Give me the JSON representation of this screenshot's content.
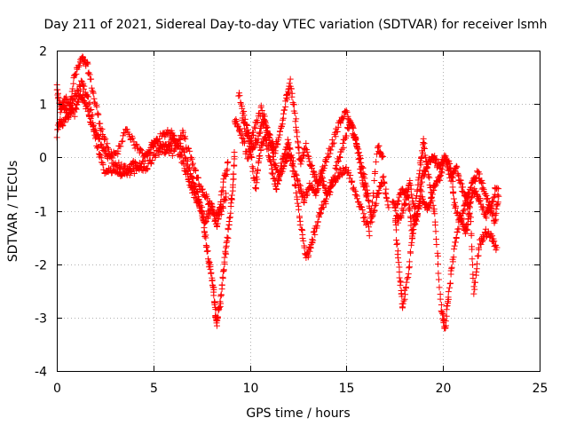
{
  "chart_data": {
    "type": "scatter",
    "title": "Day 211 of 2021, Sidereal Day-to-day VTEC variation (SDTVAR) for receiver lsmh",
    "xlabel": "GPS time / hours",
    "ylabel": "SDTVAR / TECUs",
    "xlim": [
      0,
      25
    ],
    "ylim": [
      -4,
      2
    ],
    "x_ticks": [
      "0",
      "5",
      "10",
      "15",
      "20",
      "25"
    ],
    "y_ticks": [
      "2",
      "1",
      "0",
      "-1",
      "-2",
      "-3",
      "-4"
    ],
    "grid": true,
    "marker": "+",
    "series": [
      {
        "name": "SDTVAR",
        "color": "#ff0000",
        "tracks": [
          [
            [
              0.0,
              0.4
            ],
            [
              0.3,
              1.0
            ],
            [
              0.6,
              0.8
            ],
            [
              0.9,
              1.5
            ],
            [
              1.3,
              1.85
            ],
            [
              1.6,
              1.7
            ],
            [
              2.0,
              1.0
            ],
            [
              2.4,
              0.4
            ],
            [
              2.9,
              -0.1
            ],
            [
              3.4,
              -0.2
            ],
            [
              3.9,
              -0.3
            ],
            [
              4.4,
              -0.1
            ],
            [
              4.9,
              0.2
            ],
            [
              5.3,
              0.35
            ],
            [
              5.8,
              0.5
            ],
            [
              6.2,
              0.3
            ],
            [
              6.6,
              0.1
            ],
            [
              6.9,
              -0.3
            ],
            [
              7.2,
              -0.6
            ],
            [
              7.5,
              -1.0
            ],
            [
              7.7,
              -1.5
            ],
            [
              7.9,
              -2.0
            ],
            [
              8.1,
              -2.4
            ],
            [
              8.2,
              -2.9
            ],
            [
              8.3,
              -3.1
            ],
            [
              8.5,
              -2.6
            ],
            [
              8.7,
              -1.9
            ],
            [
              8.9,
              -1.3
            ],
            [
              9.1,
              -0.6
            ],
            [
              9.2,
              0.1
            ]
          ],
          [
            [
              0.0,
              1.3
            ],
            [
              0.2,
              0.9
            ],
            [
              0.5,
              1.1
            ],
            [
              0.9,
              0.8
            ],
            [
              1.2,
              1.2
            ],
            [
              1.5,
              1.0
            ],
            [
              1.8,
              0.6
            ],
            [
              2.2,
              0.3
            ],
            [
              2.6,
              0.0
            ],
            [
              3.1,
              0.1
            ],
            [
              3.6,
              0.5
            ],
            [
              4.1,
              0.2
            ],
            [
              4.6,
              0.0
            ],
            [
              5.1,
              0.3
            ],
            [
              5.6,
              0.1
            ],
            [
              6.0,
              0.4
            ],
            [
              6.4,
              0.0
            ],
            [
              6.8,
              -0.4
            ],
            [
              7.1,
              -0.7
            ],
            [
              7.4,
              -0.9
            ],
            [
              7.7,
              -1.2
            ],
            [
              8.0,
              -0.9
            ],
            [
              8.3,
              -1.3
            ],
            [
              8.6,
              -0.5
            ],
            [
              8.9,
              -0.1
            ]
          ],
          [
            [
              0.1,
              0.6
            ],
            [
              0.5,
              0.7
            ],
            [
              0.9,
              1.1
            ],
            [
              1.3,
              1.4
            ],
            [
              1.7,
              1.0
            ],
            [
              2.1,
              0.2
            ],
            [
              2.5,
              -0.3
            ],
            [
              3.0,
              -0.2
            ],
            [
              3.5,
              -0.35
            ],
            [
              4.0,
              -0.1
            ],
            [
              4.5,
              -0.25
            ],
            [
              5.0,
              0.0
            ],
            [
              5.5,
              0.2
            ],
            [
              6.0,
              0.1
            ],
            [
              6.5,
              0.5
            ],
            [
              7.0,
              -0.1
            ],
            [
              7.4,
              -0.5
            ],
            [
              7.8,
              -0.8
            ],
            [
              8.2,
              -1.1
            ],
            [
              8.5,
              -1.0
            ],
            [
              8.8,
              -0.7
            ]
          ],
          [
            [
              9.4,
              1.2
            ],
            [
              9.8,
              0.6
            ],
            [
              10.1,
              0.2
            ],
            [
              10.4,
              0.3
            ],
            [
              10.7,
              0.7
            ],
            [
              11.0,
              0.4
            ],
            [
              11.3,
              0.1
            ],
            [
              11.6,
              0.5
            ],
            [
              11.9,
              1.1
            ],
            [
              12.1,
              1.4
            ],
            [
              12.4,
              0.6
            ],
            [
              12.6,
              -0.1
            ],
            [
              12.9,
              0.2
            ],
            [
              13.2,
              -0.2
            ],
            [
              13.5,
              -0.5
            ],
            [
              13.8,
              -0.2
            ],
            [
              14.2,
              0.2
            ],
            [
              14.6,
              0.6
            ],
            [
              15.0,
              0.9
            ],
            [
              15.4,
              0.4
            ],
            [
              15.7,
              0.0
            ],
            [
              16.0,
              -0.5
            ],
            [
              16.3,
              -1.2
            ],
            [
              16.6,
              -0.7
            ],
            [
              16.9,
              -0.4
            ],
            [
              17.2,
              -1.0
            ]
          ],
          [
            [
              9.6,
              0.7
            ],
            [
              10.0,
              0.2
            ],
            [
              10.3,
              -0.6
            ],
            [
              10.5,
              0.1
            ],
            [
              10.8,
              0.4
            ],
            [
              11.1,
              -0.2
            ],
            [
              11.4,
              -0.6
            ],
            [
              11.7,
              0.0
            ],
            [
              12.0,
              0.3
            ],
            [
              12.3,
              -0.4
            ],
            [
              12.6,
              -1.2
            ],
            [
              12.9,
              -1.9
            ],
            [
              13.2,
              -1.6
            ],
            [
              13.5,
              -1.2
            ],
            [
              13.8,
              -0.9
            ],
            [
              14.2,
              -0.6
            ],
            [
              14.6,
              -0.3
            ],
            [
              15.0,
              -0.2
            ],
            [
              15.4,
              -0.6
            ],
            [
              15.8,
              -1.0
            ],
            [
              16.2,
              -1.4
            ],
            [
              16.6,
              0.2
            ],
            [
              16.9,
              0.0
            ]
          ],
          [
            [
              9.2,
              0.7
            ],
            [
              9.5,
              0.5
            ],
            [
              9.9,
              0.0
            ],
            [
              10.2,
              0.5
            ],
            [
              10.6,
              0.9
            ],
            [
              10.9,
              0.5
            ],
            [
              11.2,
              0.0
            ],
            [
              11.5,
              -0.4
            ],
            [
              11.8,
              -0.1
            ],
            [
              12.1,
              0.1
            ],
            [
              12.5,
              -0.5
            ],
            [
              12.8,
              -0.8
            ],
            [
              13.1,
              -0.5
            ],
            [
              13.4,
              -0.7
            ],
            [
              13.7,
              -0.4
            ],
            [
              14.0,
              -0.7
            ],
            [
              14.4,
              -0.3
            ],
            [
              14.8,
              0.2
            ],
            [
              15.2,
              0.7
            ],
            [
              15.5,
              0.3
            ],
            [
              15.8,
              -0.4
            ],
            [
              16.1,
              -0.8
            ]
          ],
          [
            [
              17.5,
              -1.0
            ],
            [
              17.7,
              -2.0
            ],
            [
              17.9,
              -2.8
            ],
            [
              18.2,
              -2.2
            ],
            [
              18.5,
              -1.1
            ],
            [
              18.8,
              -0.2
            ],
            [
              19.0,
              0.3
            ],
            [
              19.3,
              -0.5
            ],
            [
              19.6,
              -1.2
            ],
            [
              19.9,
              -2.8
            ],
            [
              20.1,
              -3.2
            ],
            [
              20.3,
              -2.5
            ],
            [
              20.6,
              -1.7
            ],
            [
              20.9,
              -1.1
            ],
            [
              21.2,
              -1.4
            ],
            [
              21.4,
              -1.0
            ],
            [
              21.6,
              -2.5
            ],
            [
              21.9,
              -1.6
            ],
            [
              22.2,
              -1.4
            ],
            [
              22.5,
              -1.5
            ],
            [
              22.8,
              -1.7
            ]
          ],
          [
            [
              17.6,
              -0.9
            ],
            [
              17.9,
              -0.6
            ],
            [
              18.2,
              -0.7
            ],
            [
              18.4,
              -1.5
            ],
            [
              18.7,
              -1.0
            ],
            [
              18.9,
              -0.4
            ],
            [
              19.2,
              -0.1
            ],
            [
              19.5,
              0.0
            ],
            [
              19.8,
              -0.2
            ],
            [
              20.1,
              0.0
            ],
            [
              20.4,
              -0.4
            ],
            [
              20.7,
              -0.2
            ],
            [
              21.0,
              -0.6
            ],
            [
              21.3,
              -0.9
            ],
            [
              21.6,
              -0.6
            ],
            [
              21.9,
              -0.8
            ],
            [
              22.2,
              -1.1
            ],
            [
              22.5,
              -0.9
            ],
            [
              22.8,
              -0.5
            ]
          ],
          [
            [
              17.4,
              -0.8
            ],
            [
              17.7,
              -1.2
            ],
            [
              18.0,
              -0.9
            ],
            [
              18.3,
              -0.5
            ],
            [
              18.6,
              -1.2
            ],
            [
              18.9,
              -0.7
            ],
            [
              19.2,
              -1.0
            ],
            [
              19.5,
              -0.6
            ],
            [
              19.8,
              -0.4
            ],
            [
              20.1,
              0.0
            ],
            [
              20.4,
              -0.2
            ],
            [
              20.6,
              -0.9
            ],
            [
              20.9,
              -1.2
            ],
            [
              21.2,
              -0.8
            ],
            [
              21.5,
              -0.5
            ],
            [
              21.8,
              -0.3
            ],
            [
              22.1,
              -0.6
            ],
            [
              22.4,
              -0.9
            ],
            [
              22.7,
              -1.2
            ],
            [
              22.9,
              -0.6
            ]
          ]
        ]
      }
    ]
  }
}
